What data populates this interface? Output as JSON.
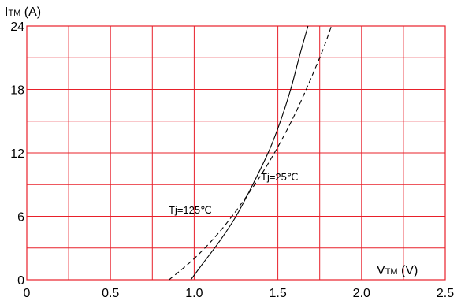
{
  "chart_data": {
    "type": "line",
    "xlabel": {
      "main": "V",
      "sub": "TM",
      "unit": " (V)"
    },
    "ylabel": {
      "main": "I",
      "sub": "TM",
      "unit": " (A)"
    },
    "xlim": [
      0,
      2.5
    ],
    "ylim": [
      0,
      24
    ],
    "x_ticks": [
      "0",
      "0.5",
      "1.0",
      "1.5",
      "2.0",
      "2.5"
    ],
    "y_ticks": [
      "0",
      "6",
      "12",
      "18",
      "24"
    ],
    "grid": true,
    "grid_color": "#e8202a",
    "series": [
      {
        "annotation": "Tj=25℃",
        "style": "solid",
        "color": "#000000",
        "x": [
          0.98,
          1.05,
          1.15,
          1.25,
          1.35,
          1.45,
          1.52,
          1.58,
          1.63,
          1.68
        ],
        "y": [
          0,
          1.5,
          3.6,
          6.0,
          9.0,
          12.3,
          15.2,
          18.2,
          21.2,
          24.0
        ]
      },
      {
        "annotation": "Tj=125℃",
        "style": "dashed",
        "color": "#000000",
        "x": [
          0.85,
          1.0,
          1.15,
          1.3,
          1.45,
          1.6,
          1.75,
          1.82
        ],
        "y": [
          0,
          2.0,
          4.5,
          7.6,
          11.2,
          15.6,
          21.0,
          24.0
        ]
      }
    ]
  }
}
